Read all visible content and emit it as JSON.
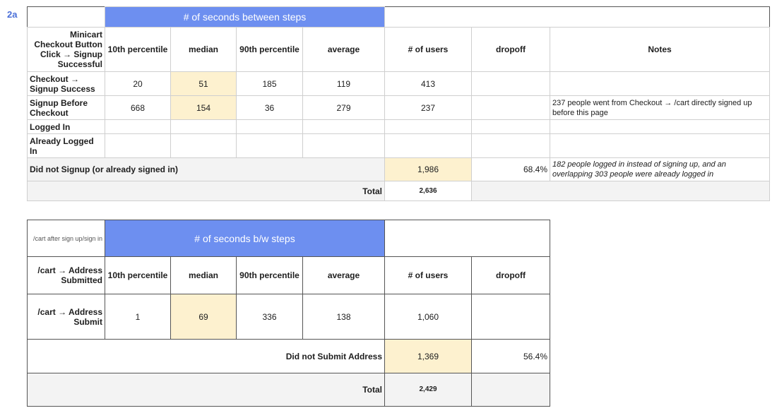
{
  "section_label": "2a",
  "table1": {
    "group_header": "# of seconds between steps",
    "corner_label": "Minicart Checkout Button Click → Signup Successful",
    "columns": [
      "10th percentile",
      "median",
      "90th percentile",
      "average",
      "# of users",
      "dropoff",
      "Notes"
    ],
    "rows": [
      {
        "label": "Checkout → Signup Success",
        "p10": "20",
        "median": "51",
        "p90": "185",
        "avg": "119",
        "users": "413",
        "dropoff": "",
        "notes": ""
      },
      {
        "label": "Signup Before Checkout",
        "p10": "668",
        "median": "154",
        "p90": "36",
        "avg": "279",
        "users": "237",
        "dropoff": "",
        "notes": "237 people went from Checkout → /cart directly signed up before this page"
      },
      {
        "label": "Logged In",
        "p10": "",
        "median": "",
        "p90": "",
        "avg": "",
        "users": "",
        "dropoff": "",
        "notes": ""
      },
      {
        "label": "Already Logged In",
        "p10": "",
        "median": "",
        "p90": "",
        "avg": "",
        "users": "",
        "dropoff": "",
        "notes": ""
      }
    ],
    "did_not_label": "Did not Signup (or already signed in)",
    "did_not_users": "1,986",
    "did_not_dropoff": "68.4%",
    "did_not_note": "182 people logged in instead of signing up, and an overlapping 303 people were already logged in",
    "total_label": "Total",
    "total_value": "2,636"
  },
  "table2": {
    "corner_label": "/cart after sign up/sign in",
    "group_header": "# of seconds b/w steps",
    "header_label": "/cart → Address Submitted",
    "columns": [
      "10th percentile",
      "median",
      "90th percentile",
      "average",
      "# of users",
      "dropoff"
    ],
    "row": {
      "label": "/cart → Address Submit",
      "p10": "1",
      "median": "69",
      "p90": "336",
      "avg": "138",
      "users": "1,060",
      "dropoff": ""
    },
    "did_not_label": "Did not Submit Address",
    "did_not_users": "1,369",
    "did_not_dropoff": "56.4%",
    "total_label": "Total",
    "total_value": "2,429"
  }
}
